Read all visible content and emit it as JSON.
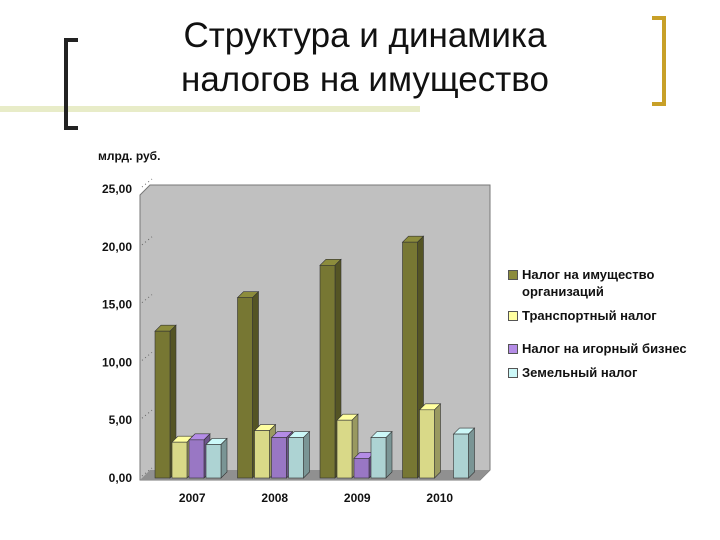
{
  "chart_data": {
    "type": "bar3d",
    "title": "Структура и динамика налогов на имущество",
    "y_label": "млрд. руб.",
    "categories": [
      "2007",
      "2008",
      "2009",
      "2010"
    ],
    "series": [
      {
        "name": "Налог на имущество организаций",
        "color": "#8c8c3c",
        "values": [
          12.7,
          15.6,
          18.4,
          20.4
        ]
      },
      {
        "name": "Транспортный налог",
        "color": "#ffffa0",
        "values": [
          3.1,
          4.1,
          5.0,
          5.9
        ]
      },
      {
        "name": "Налог на игорный бизнес",
        "color": "#b48ce6",
        "values": [
          3.3,
          3.5,
          1.7,
          null
        ]
      },
      {
        "name": "Земельный налог",
        "color": "#ccf8f8",
        "values": [
          2.9,
          3.5,
          3.5,
          3.8
        ]
      }
    ],
    "ylim": [
      0,
      25
    ],
    "yticks": [
      {
        "value": 0,
        "label": "0,00"
      },
      {
        "value": 5,
        "label": "5,00"
      },
      {
        "value": 10,
        "label": "10,00"
      },
      {
        "value": 15,
        "label": "15,00"
      },
      {
        "value": 20,
        "label": "20,00"
      },
      {
        "value": 25,
        "label": "25,00"
      }
    ],
    "grid": false
  }
}
